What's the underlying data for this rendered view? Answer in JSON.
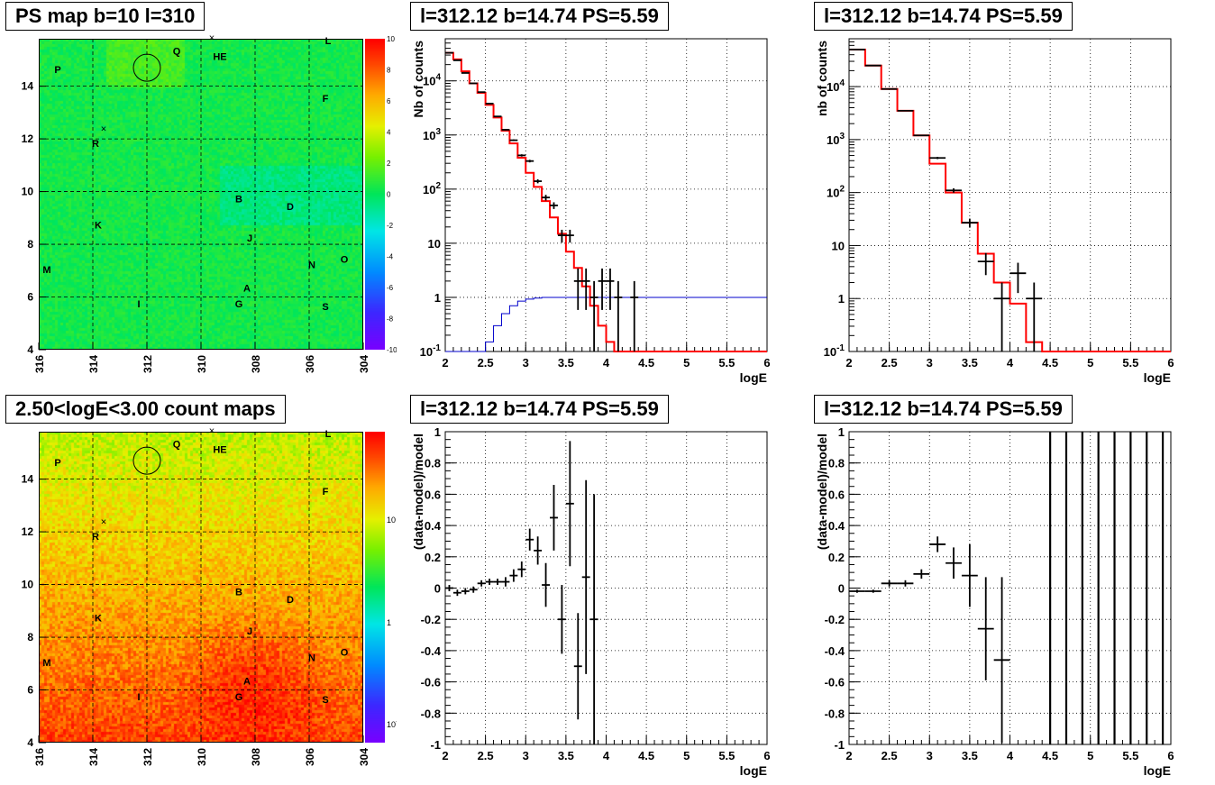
{
  "colors": {
    "data": "#000000",
    "model": "#ff0000",
    "efficiency": "#0000cc"
  },
  "panels": {
    "ps_map": {
      "title": "PS map b=10 l=310",
      "x_ticks": [
        "316",
        "314",
        "312",
        "310",
        "308",
        "306",
        "304"
      ],
      "y_ticks": [
        "4",
        "6",
        "8",
        "10",
        "12",
        "14"
      ],
      "z_ticks": [
        "10",
        "8",
        "6",
        "4",
        "2",
        "0",
        "-2",
        "-4",
        "-6",
        "-8",
        "-10"
      ],
      "labels": [
        "P",
        "Q",
        "HE",
        "L",
        "F",
        "R",
        "B",
        "D",
        "K",
        "J",
        "M",
        "N",
        "O",
        "A",
        "I",
        "G",
        "S"
      ]
    },
    "count_map": {
      "title": "2.50<logE<3.00 count maps",
      "x_ticks": [
        "316",
        "314",
        "312",
        "310",
        "308",
        "306",
        "304"
      ],
      "y_ticks": [
        "4",
        "6",
        "8",
        "10",
        "12",
        "14"
      ],
      "z_ticks": [
        "10",
        "1",
        "10^-1"
      ],
      "labels": [
        "P",
        "Q",
        "HE",
        "L",
        "F",
        "R",
        "B",
        "D",
        "K",
        "J",
        "M",
        "N",
        "O",
        "A",
        "I",
        "G",
        "S"
      ]
    },
    "spec_fine": {
      "title": "l=312.12 b=14.74 PS=5.59",
      "ylabel": "Nb of counts",
      "xlabel": "logE"
    },
    "spec_coarse": {
      "title": "l=312.12 b=14.74 PS=5.59",
      "ylabel": "nb of counts",
      "xlabel": "logE"
    },
    "res_fine": {
      "title": "l=312.12 b=14.74 PS=5.59",
      "ylabel": "(data-model)/model",
      "xlabel": "logE"
    },
    "res_coarse": {
      "title": "l=312.12 b=14.74 PS=5.59",
      "ylabel": "(data-model)/model",
      "xlabel": "logE"
    }
  },
  "chart_data": [
    {
      "type": "heatmap",
      "title": "PS map b=10 l=310",
      "xlim": [
        316,
        304
      ],
      "ylim": [
        4,
        15.8
      ],
      "zlim": [
        -10,
        10
      ],
      "circle": {
        "x": 312.0,
        "y": 14.7
      }
    },
    {
      "type": "heatmap",
      "title": "2.50<logE<3.00 count maps",
      "xlim": [
        316,
        304
      ],
      "ylim": [
        4,
        15.8
      ],
      "zlim": [
        0.05,
        40
      ],
      "zscale": "log",
      "circle": {
        "x": 312.0,
        "y": 14.7
      }
    },
    {
      "type": "line",
      "title": "l=312.12 b=14.74 PS=5.59",
      "xlabel": "logE",
      "ylabel": "Nb of counts",
      "xlim": [
        2,
        6
      ],
      "ylim": [
        0.1,
        60000
      ],
      "yscale": "log",
      "x_ticks": [
        "2",
        "2.5",
        "3",
        "3.5",
        "4",
        "4.5",
        "5",
        "5.5",
        "6"
      ],
      "y_ticks": [
        {
          "v": 0.1,
          "t": "10^-1"
        },
        {
          "v": 1,
          "t": "1"
        },
        {
          "v": 10,
          "t": "10"
        },
        {
          "v": 100,
          "t": "10^2"
        },
        {
          "v": 1000,
          "t": "10^3"
        },
        {
          "v": 10000,
          "t": "10^4"
        }
      ],
      "bin_width": 0.1,
      "model_x": [
        2.0,
        2.1,
        2.2,
        2.3,
        2.4,
        2.5,
        2.6,
        2.7,
        2.8,
        2.9,
        3.0,
        3.1,
        3.2,
        3.3,
        3.4,
        3.5,
        3.6,
        3.7,
        3.8,
        3.9,
        4.0,
        4.1,
        4.2,
        4.3,
        4.4,
        4.5,
        4.6,
        4.7,
        4.8,
        4.9,
        5.0,
        5.1,
        5.2,
        5.3,
        5.4,
        5.5,
        5.6,
        5.7,
        5.8,
        5.9
      ],
      "model_y": [
        33000,
        25000,
        15000,
        9000,
        6000,
        3600,
        2100,
        1200,
        700,
        380,
        200,
        110,
        60,
        30,
        15,
        7,
        3.5,
        1.6,
        0.7,
        0.3,
        0.15,
        0.1,
        0.1,
        0.1,
        0.1,
        0.1,
        0.1,
        0.1,
        0.1,
        0.1,
        0.1,
        0.1,
        0.1,
        0.1,
        0.1,
        0.1,
        0.1,
        0.1,
        0.1,
        0.1
      ],
      "data_x": [
        2.05,
        2.15,
        2.25,
        2.35,
        2.45,
        2.55,
        2.65,
        2.75,
        2.85,
        2.95,
        3.05,
        3.15,
        3.25,
        3.35,
        3.45,
        3.55,
        3.65,
        3.75,
        3.85,
        3.95,
        4.05,
        4.15,
        4.35
      ],
      "data_y": [
        33000,
        24000,
        14000,
        9000,
        6200,
        3800,
        2200,
        1250,
        800,
        420,
        330,
        140,
        70,
        50,
        14,
        14,
        2,
        2,
        1,
        2,
        2,
        1,
        1
      ],
      "eff_y": [
        0.1,
        0.1,
        0.1,
        0.1,
        0.1,
        0.15,
        0.3,
        0.5,
        0.7,
        0.85,
        0.93,
        0.97,
        1,
        1,
        1,
        1,
        1,
        1,
        1,
        1,
        1,
        1,
        1,
        1,
        1,
        1,
        1,
        1,
        1,
        1,
        1,
        1,
        1,
        1,
        1,
        1,
        1,
        1,
        1,
        1
      ]
    },
    {
      "type": "line",
      "title": "l=312.12 b=14.74 PS=5.59",
      "xlabel": "logE",
      "ylabel": "nb of counts",
      "xlim": [
        2,
        6
      ],
      "ylim": [
        0.1,
        80000
      ],
      "yscale": "log",
      "x_ticks": [
        "2",
        "2.5",
        "3",
        "3.5",
        "4",
        "4.5",
        "5",
        "5.5",
        "6"
      ],
      "y_ticks": [
        {
          "v": 0.1,
          "t": "10^-1"
        },
        {
          "v": 1,
          "t": "1"
        },
        {
          "v": 10,
          "t": "10"
        },
        {
          "v": 100,
          "t": "10^2"
        },
        {
          "v": 1000,
          "t": "10^3"
        },
        {
          "v": 10000,
          "t": "10^4"
        }
      ],
      "bin_width": 0.2,
      "model_x": [
        2.0,
        2.2,
        2.4,
        2.6,
        2.8,
        3.0,
        3.2,
        3.4,
        3.6,
        3.8,
        4.0,
        4.2,
        4.4,
        4.6,
        4.8,
        5.0,
        5.2,
        5.4,
        5.6,
        5.8
      ],
      "model_y": [
        50000,
        25000,
        9000,
        3500,
        1200,
        350,
        100,
        27,
        7,
        2,
        0.8,
        0.15,
        0.1,
        0.1,
        0.1,
        0.1,
        0.1,
        0.1,
        0.1,
        0.1
      ],
      "data_x": [
        2.1,
        2.3,
        2.5,
        2.7,
        2.9,
        3.1,
        3.3,
        3.5,
        3.7,
        3.9,
        4.1,
        4.3
      ],
      "data_y": [
        50000,
        25000,
        9000,
        3500,
        1200,
        450,
        110,
        27,
        5,
        1,
        3,
        1
      ]
    },
    {
      "type": "scatter",
      "title": "l=312.12 b=14.74 PS=5.59",
      "xlabel": "logE",
      "ylabel": "(data-model)/model",
      "xlim": [
        2,
        6
      ],
      "ylim": [
        -1,
        1
      ],
      "x_ticks": [
        "2",
        "2.5",
        "3",
        "3.5",
        "4",
        "4.5",
        "5",
        "5.5",
        "6"
      ],
      "y_ticks": [
        "-1",
        "-0.8",
        "-0.6",
        "-0.4",
        "-0.2",
        "0",
        "0.2",
        "0.4",
        "0.6",
        "0.8",
        "1"
      ],
      "bin_width": 0.1,
      "points": [
        {
          "x": 2.05,
          "y": 0.0,
          "e": 0.02
        },
        {
          "x": 2.15,
          "y": -0.03,
          "e": 0.02
        },
        {
          "x": 2.25,
          "y": -0.02,
          "e": 0.02
        },
        {
          "x": 2.35,
          "y": -0.01,
          "e": 0.02
        },
        {
          "x": 2.45,
          "y": 0.03,
          "e": 0.02
        },
        {
          "x": 2.55,
          "y": 0.04,
          "e": 0.02
        },
        {
          "x": 2.65,
          "y": 0.04,
          "e": 0.02
        },
        {
          "x": 2.75,
          "y": 0.04,
          "e": 0.03
        },
        {
          "x": 2.85,
          "y": 0.08,
          "e": 0.04
        },
        {
          "x": 2.95,
          "y": 0.12,
          "e": 0.05
        },
        {
          "x": 3.05,
          "y": 0.31,
          "e": 0.07
        },
        {
          "x": 3.15,
          "y": 0.24,
          "e": 0.09
        },
        {
          "x": 3.25,
          "y": 0.02,
          "e": 0.14
        },
        {
          "x": 3.35,
          "y": 0.45,
          "e": 0.21
        },
        {
          "x": 3.45,
          "y": -0.2,
          "e": 0.22
        },
        {
          "x": 3.55,
          "y": 0.54,
          "e": 0.4
        },
        {
          "x": 3.65,
          "y": -0.5,
          "e": 0.34
        },
        {
          "x": 3.75,
          "y": 0.07,
          "e": 0.62
        },
        {
          "x": 3.85,
          "y": -0.2,
          "e": 0.8
        }
      ]
    },
    {
      "type": "scatter",
      "title": "l=312.12 b=14.74 PS=5.59",
      "xlabel": "logE",
      "ylabel": "(data-model)/model",
      "xlim": [
        2,
        6
      ],
      "ylim": [
        -1,
        1
      ],
      "x_ticks": [
        "2",
        "2.5",
        "3",
        "3.5",
        "4",
        "4.5",
        "5",
        "5.5",
        "6"
      ],
      "y_ticks": [
        "-1",
        "-0.8",
        "-0.6",
        "-0.4",
        "-0.2",
        "0",
        "0.2",
        "0.4",
        "0.6",
        "0.8",
        "1"
      ],
      "bin_width": 0.2,
      "points": [
        {
          "x": 2.1,
          "y": -0.02,
          "e": 0.01
        },
        {
          "x": 2.3,
          "y": -0.02,
          "e": 0.01
        },
        {
          "x": 2.5,
          "y": 0.03,
          "e": 0.02
        },
        {
          "x": 2.7,
          "y": 0.03,
          "e": 0.02
        },
        {
          "x": 2.9,
          "y": 0.09,
          "e": 0.03
        },
        {
          "x": 3.1,
          "y": 0.28,
          "e": 0.05
        },
        {
          "x": 3.3,
          "y": 0.16,
          "e": 0.1
        },
        {
          "x": 3.5,
          "y": 0.08,
          "e": 0.2
        },
        {
          "x": 3.7,
          "y": -0.26,
          "e": 0.33
        },
        {
          "x": 3.9,
          "y": -0.46,
          "e": 0.53
        }
      ],
      "full_bars_x": [
        4.5,
        4.7,
        4.9,
        5.1,
        5.3,
        5.5,
        5.7,
        5.9
      ]
    }
  ]
}
